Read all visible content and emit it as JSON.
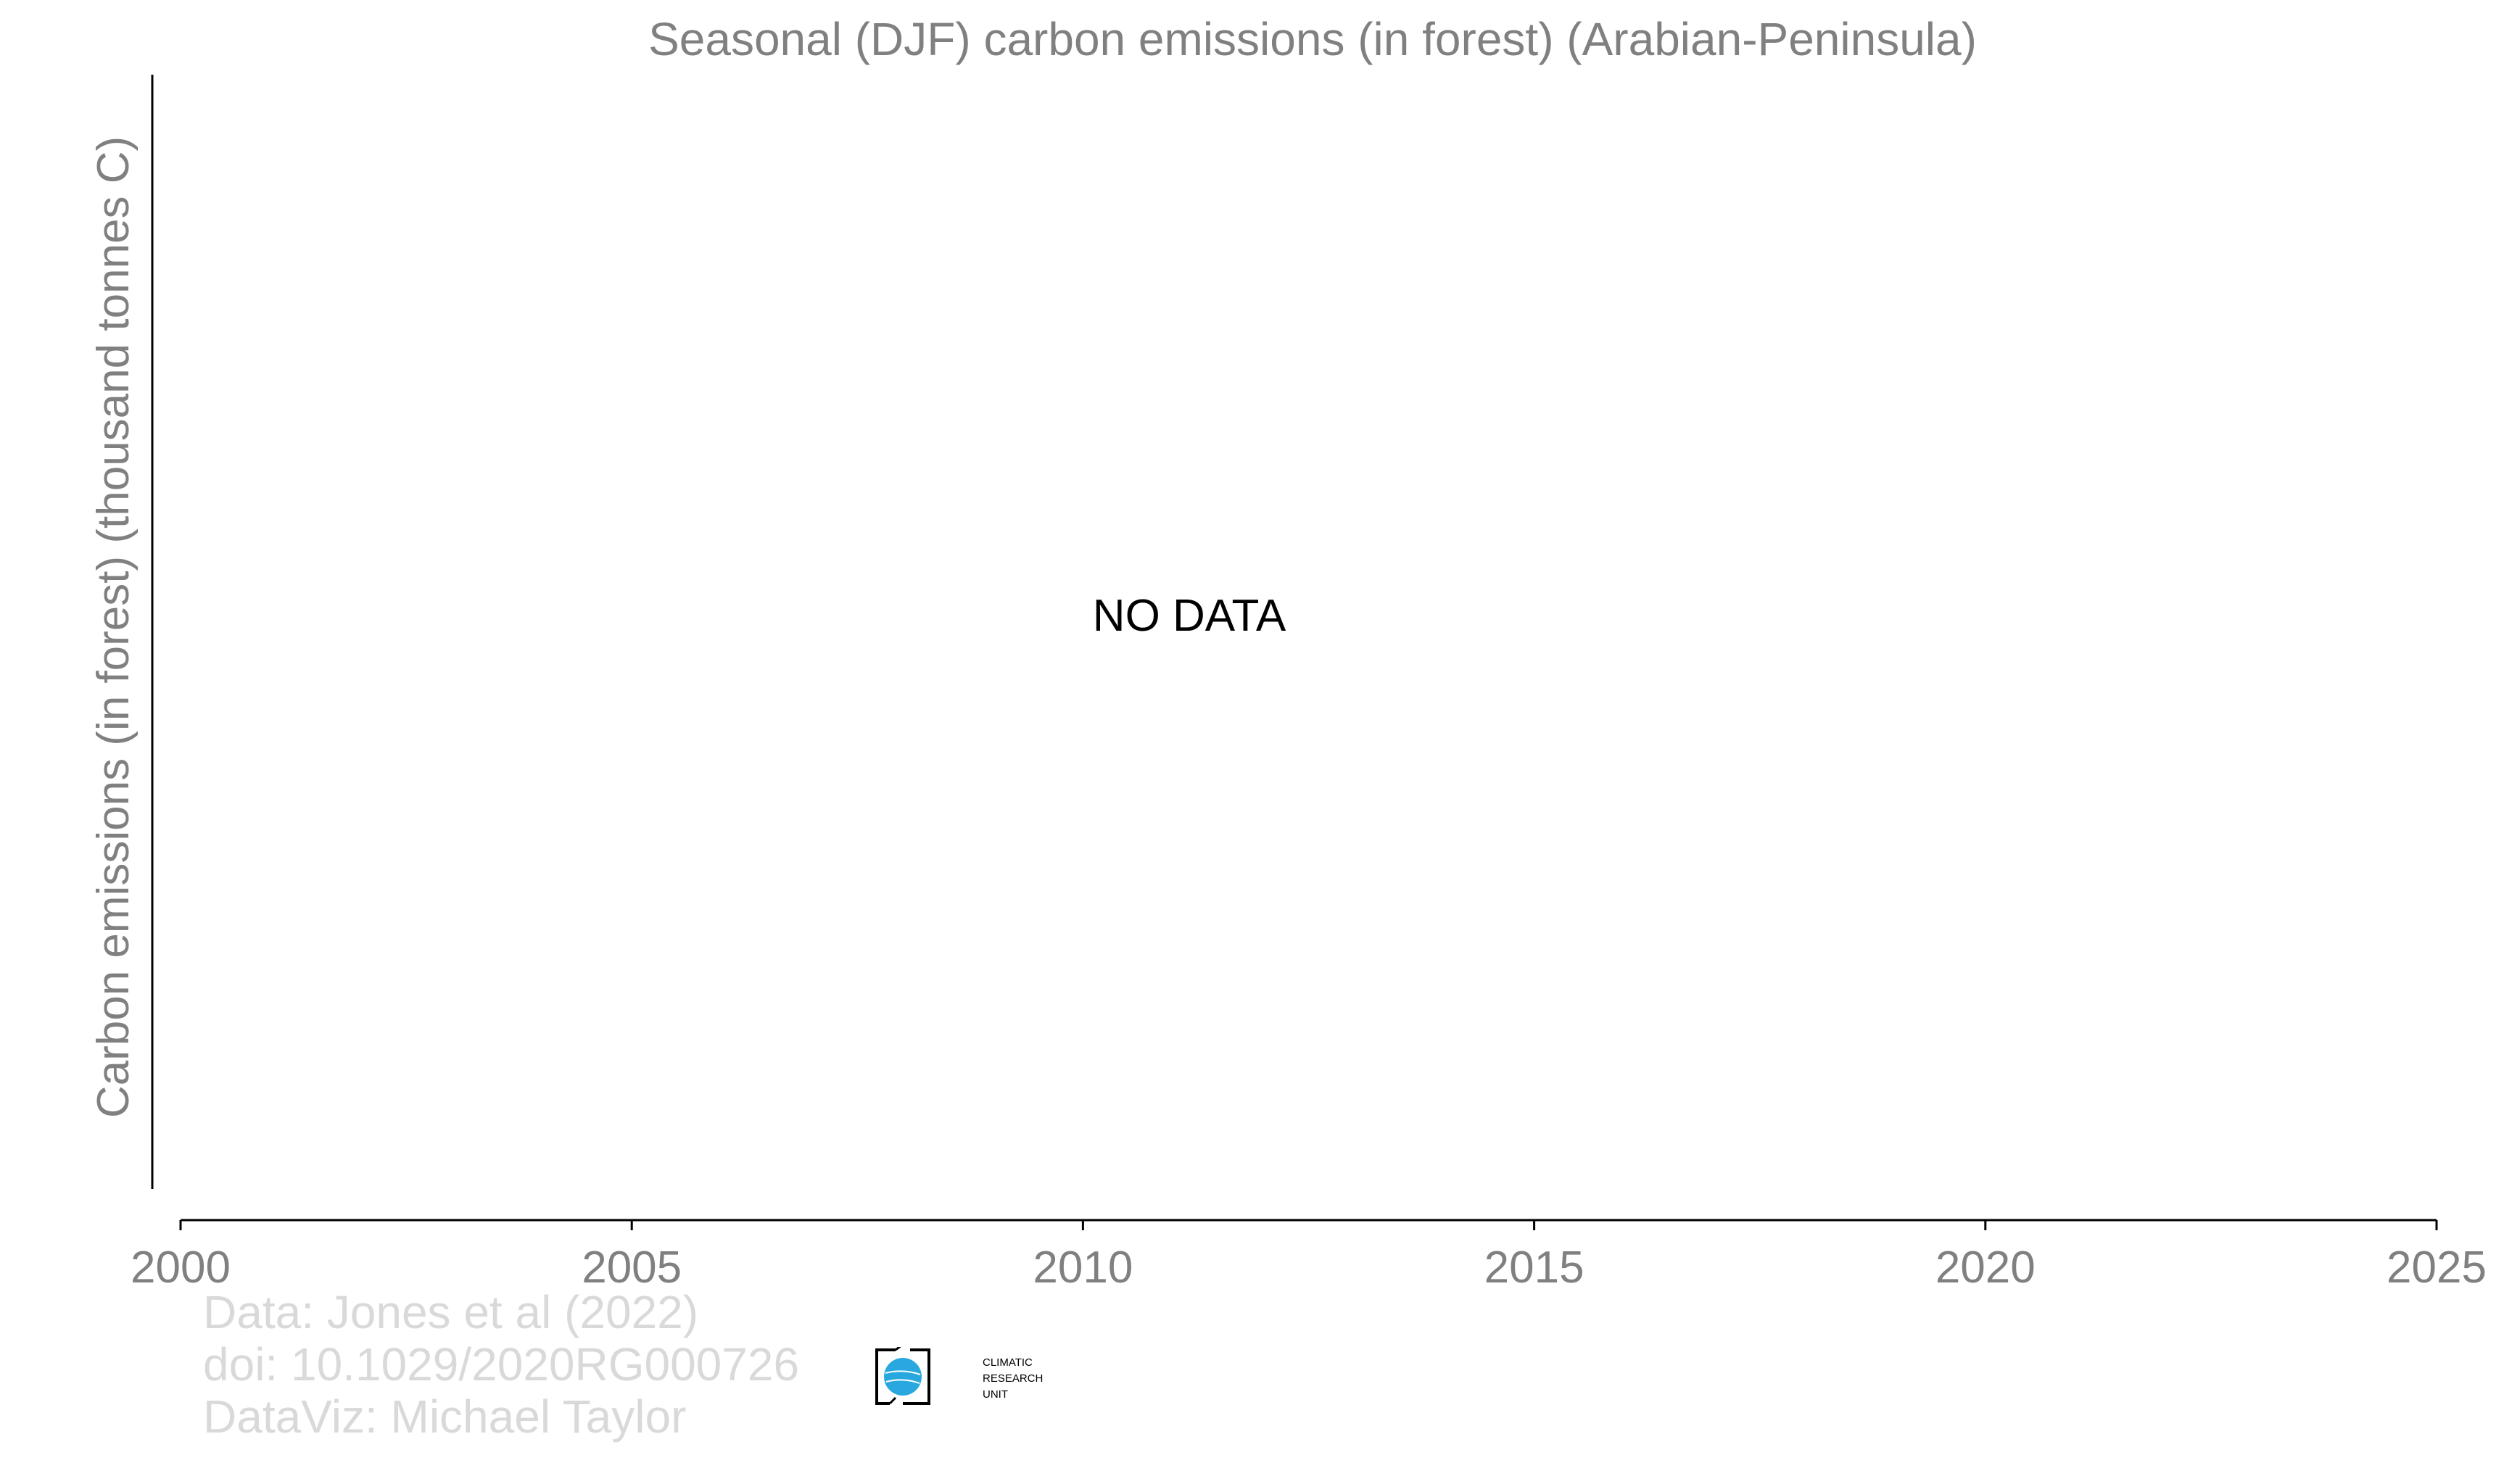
{
  "chart_data": {
    "type": "line",
    "title": "Seasonal (DJF) carbon emissions (in forest) (Arabian-Peninsula)",
    "xlabel": "",
    "ylabel": "Carbon emissions (in forest) (thousand tonnes C)",
    "xlim": [
      2000,
      2025
    ],
    "x_ticks": [
      "2000",
      "2005",
      "2010",
      "2015",
      "2020",
      "2025"
    ],
    "series": [],
    "annotation": "NO DATA",
    "grid": false
  },
  "credits": {
    "line1": "Data: Jones et al (2022)",
    "line2": "doi: 10.1029/2020RG000726",
    "line3": "DataViz: Michael Taylor"
  },
  "logo": {
    "lines": [
      "CLIMATIC",
      "RESEARCH",
      "UNIT"
    ],
    "globe_color": "#29a8e0"
  }
}
